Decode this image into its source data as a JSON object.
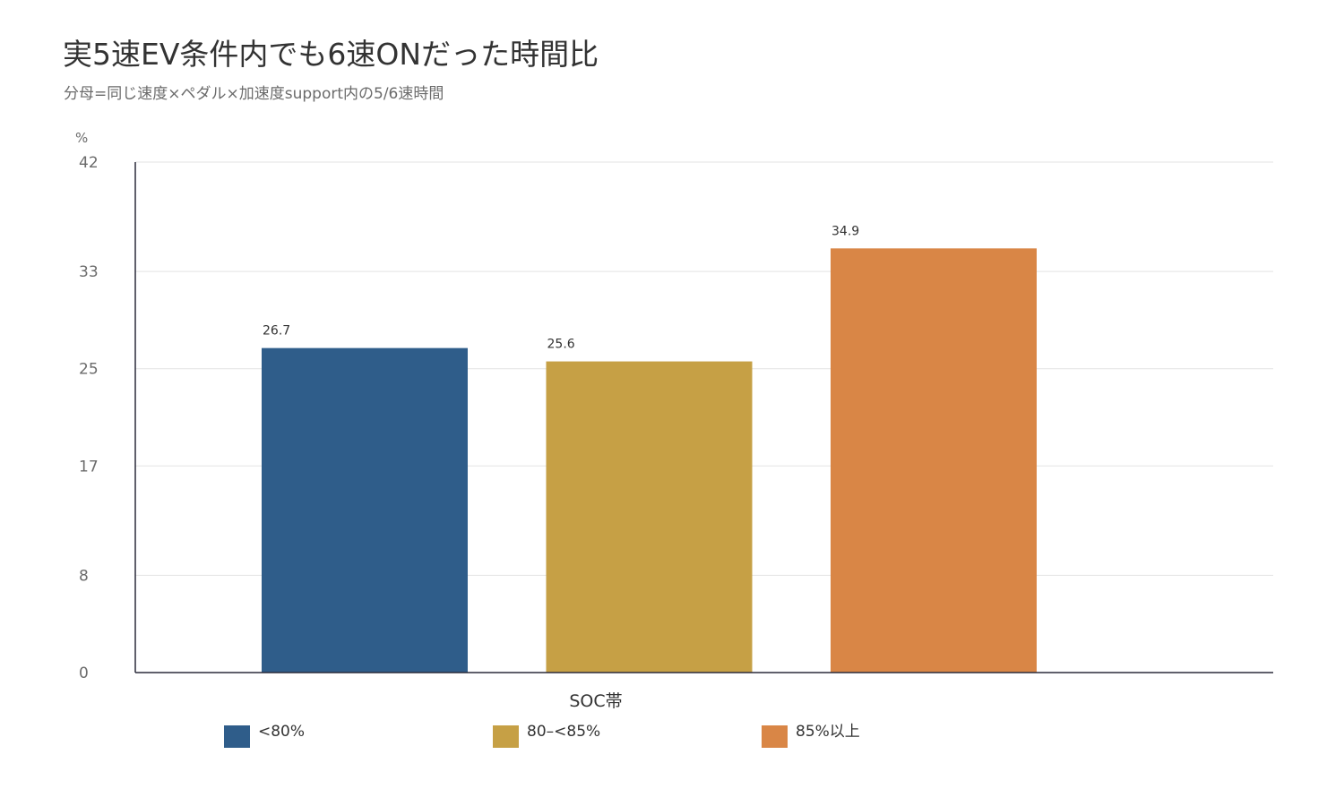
{
  "chart_data": {
    "type": "bar",
    "title": "実5速EV条件内でも6速ONだった時間比",
    "subtitle": "分母=同じ速度×ペダル×加速度support内の5/6速時間",
    "xlabel": "SOC帯",
    "ylabel": "%",
    "ylim": [
      0,
      42
    ],
    "yticks": [
      0,
      8,
      17,
      25,
      33,
      42
    ],
    "grid": true,
    "legend_position": "bottom",
    "categories": [
      "<80%",
      "80–<85%",
      "85%以上"
    ],
    "series": [
      {
        "category": "<80%",
        "value": 26.7,
        "color": "#2f5d8a"
      },
      {
        "category": "80–<85%",
        "value": 25.6,
        "color": "#c6a045"
      },
      {
        "category": "85%以上",
        "value": 34.9,
        "color": "#d98646"
      }
    ],
    "values": [
      26.7,
      25.6,
      34.9
    ],
    "data_labels": [
      "26.7",
      "25.6",
      "34.9"
    ]
  }
}
